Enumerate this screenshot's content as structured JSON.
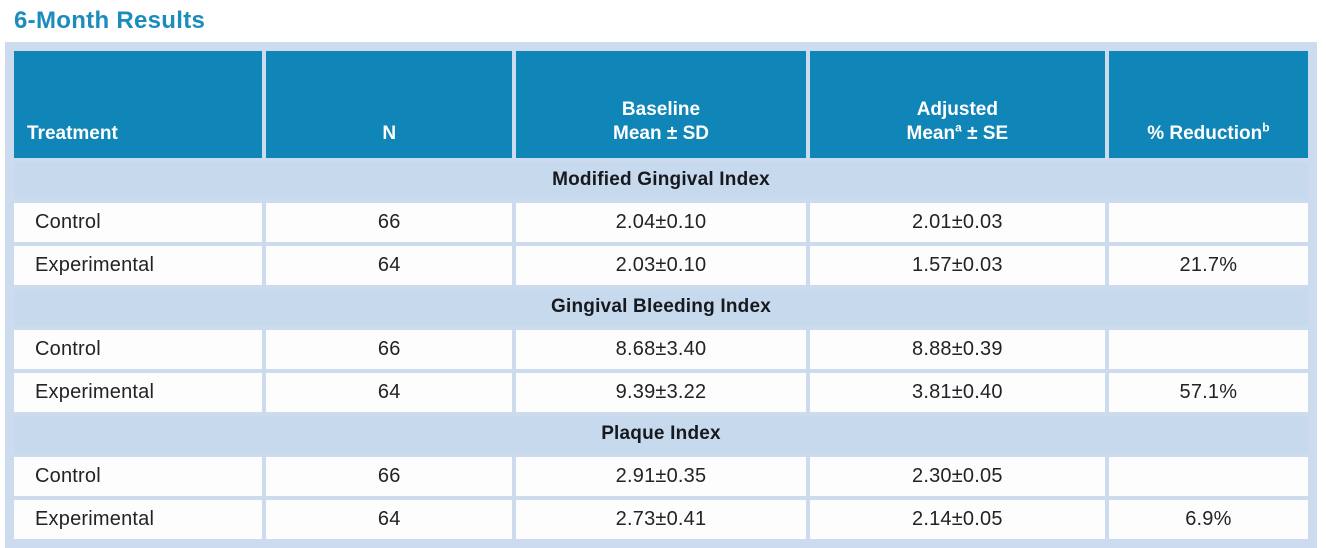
{
  "title": "6-Month Results",
  "table": {
    "header": {
      "treatment": "Treatment",
      "n": "N",
      "baseline_line1": "Baseline",
      "baseline_line2": "Mean ± SD",
      "adjusted_line1": "Adjusted",
      "adjusted_line2_pre": "Mean",
      "adjusted_sup": "a",
      "adjusted_line2_post": " ± SE",
      "reduction_pre": "% Reduction",
      "reduction_sup": "b"
    },
    "sections": [
      {
        "title": "Modified Gingival Index",
        "rows": [
          {
            "treatment": "Control",
            "n": "66",
            "baseline": "2.04±0.10",
            "adjusted": "2.01±0.03",
            "reduction": ""
          },
          {
            "treatment": "Experimental",
            "n": "64",
            "baseline": "2.03±0.10",
            "adjusted": "1.57±0.03",
            "reduction": "21.7%"
          }
        ]
      },
      {
        "title": "Gingival Bleeding Index",
        "rows": [
          {
            "treatment": "Control",
            "n": "66",
            "baseline": "8.68±3.40",
            "adjusted": "8.88±0.39",
            "reduction": ""
          },
          {
            "treatment": "Experimental",
            "n": "64",
            "baseline": "9.39±3.22",
            "adjusted": "3.81±0.40",
            "reduction": "57.1%"
          }
        ]
      },
      {
        "title": "Plaque Index",
        "rows": [
          {
            "treatment": "Control",
            "n": "66",
            "baseline": "2.91±0.35",
            "adjusted": "2.30±0.05",
            "reduction": ""
          },
          {
            "treatment": "Experimental",
            "n": "64",
            "baseline": "2.73±0.41",
            "adjusted": "2.14±0.05",
            "reduction": "6.9%"
          }
        ]
      }
    ]
  },
  "chart_data": {
    "type": "table",
    "title": "6-Month Results",
    "columns": [
      "Treatment",
      "N",
      "Baseline Mean ± SD",
      "Adjusted Mean(a) ± SE",
      "% Reduction(b)"
    ],
    "groups": [
      {
        "group": "Modified Gingival Index",
        "rows": [
          [
            "Control",
            66,
            "2.04±0.10",
            "2.01±0.03",
            null
          ],
          [
            "Experimental",
            64,
            "2.03±0.10",
            "1.57±0.03",
            "21.7%"
          ]
        ]
      },
      {
        "group": "Gingival Bleeding Index",
        "rows": [
          [
            "Control",
            66,
            "8.68±3.40",
            "8.88±0.39",
            null
          ],
          [
            "Experimental",
            64,
            "9.39±3.22",
            "3.81±0.40",
            "57.1%"
          ]
        ]
      },
      {
        "group": "Plaque Index",
        "rows": [
          [
            "Control",
            66,
            "2.91±0.35",
            "2.30±0.05",
            null
          ],
          [
            "Experimental",
            64,
            "2.73±0.41",
            "2.14±0.05",
            "6.9%"
          ]
        ]
      }
    ]
  },
  "colors": {
    "title_text": "#1b8cbc",
    "header_bg": "#1086b8",
    "header_text": "#ffffff",
    "section_band_bg": "#c6d9ed",
    "frame_bg": "#ccdcee",
    "cell_bg": "#fdfdfe",
    "body_text": "#232327"
  }
}
